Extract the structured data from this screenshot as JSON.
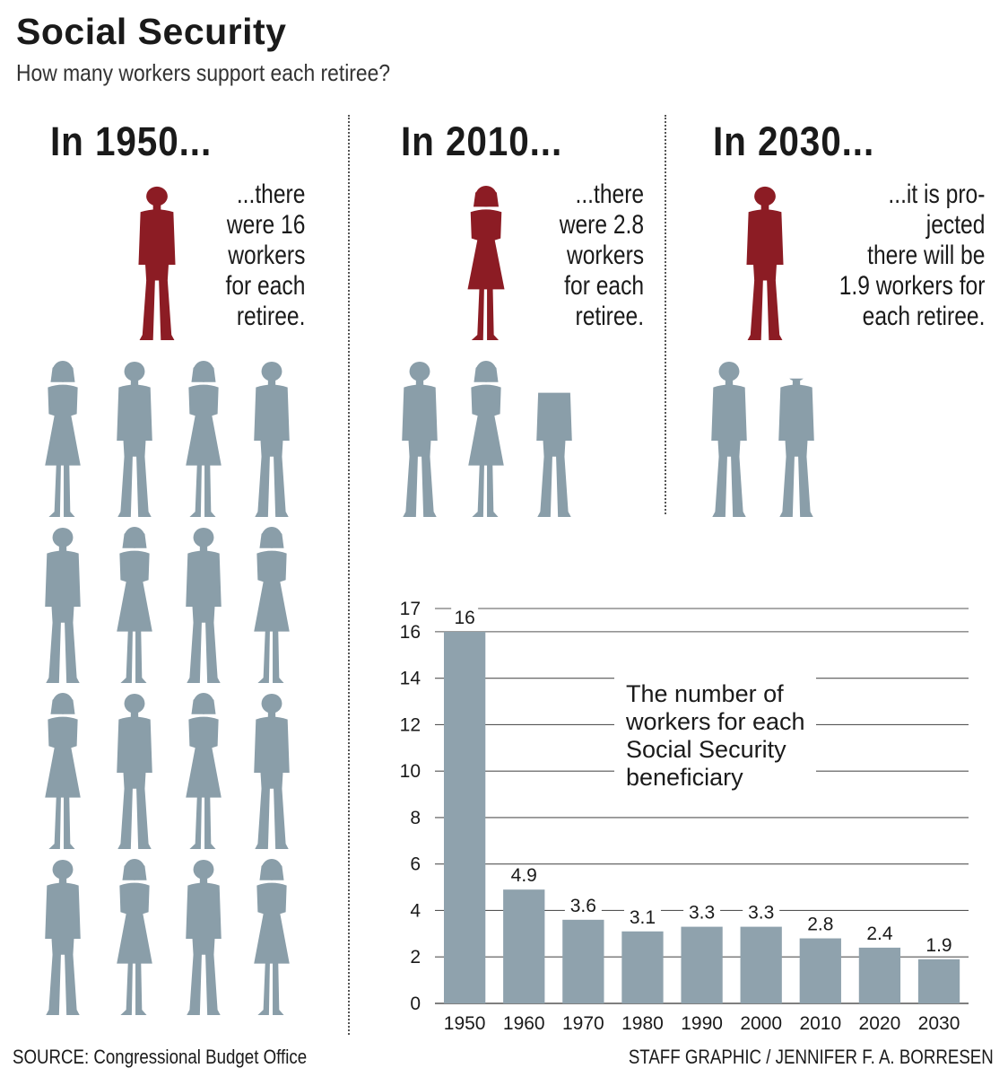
{
  "header": {
    "title": "Social Security",
    "subtitle": "How many workers support each retiree?"
  },
  "panels": [
    {
      "year_label": "In 1950...",
      "caption": "...there\nwere 16\nworkers\nfor each\nretiree."
    },
    {
      "year_label": "In 2010...",
      "caption": "...there\nwere 2.8\nworkers\nfor each\nretiree."
    },
    {
      "year_label": "In 2030...",
      "caption": "...it is pro-\njected\nthere will be\n1.9 workers for\neach retiree."
    }
  ],
  "colors": {
    "retiree": "#8c1c24",
    "worker": "#8a9ea9",
    "bar": "#8fa2ad",
    "grid": "#555555"
  },
  "chart_data": {
    "type": "bar",
    "categories": [
      "1950",
      "1960",
      "1970",
      "1980",
      "1990",
      "2000",
      "2010",
      "2020",
      "2030"
    ],
    "values": [
      16,
      4.9,
      3.6,
      3.1,
      3.3,
      3.3,
      2.8,
      2.4,
      1.9
    ],
    "value_labels": [
      "16",
      "4.9",
      "3.6",
      "3.1",
      "3.3",
      "3.3",
      "2.8",
      "2.4",
      "1.9"
    ],
    "yticks": [
      0,
      2,
      4,
      6,
      8,
      10,
      12,
      14,
      16,
      17
    ],
    "ylim": [
      0,
      17
    ],
    "grid": true,
    "annotation": "The number of\nworkers for each\nSocial Security\nbeneficiary"
  },
  "footer": {
    "source": "SOURCE: Congressional Budget Office",
    "credit": "STAFF GRAPHIC / JENNIFER F. A. BORRESEN"
  }
}
